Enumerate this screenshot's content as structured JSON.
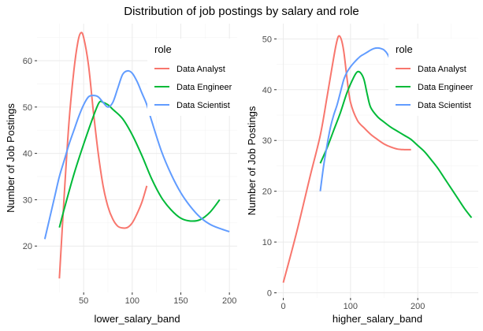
{
  "title": "Distribution of job postings by salary and role",
  "colors": {
    "panel_bg": "#ffffff",
    "grid_major": "#ebebeb",
    "grid_minor": "#f5f5f5",
    "legend_bg": "#ffffff"
  },
  "chart_data": [
    {
      "type": "line",
      "xlabel": "lower_salary_band",
      "ylabel": "Number of Job Postings",
      "xlim": [
        2,
        208
      ],
      "ylim": [
        10,
        68
      ],
      "xticks": [
        50,
        100,
        150,
        200
      ],
      "yticks": [
        20,
        30,
        40,
        50,
        60
      ],
      "legend": {
        "title": "role",
        "position": "top-right",
        "entries": [
          "Data Analyst",
          "Data Engineer",
          "Data Scientist"
        ]
      },
      "series": [
        {
          "name": "Data Analyst",
          "color": "#F8766D",
          "x": [
            25,
            30,
            35,
            40,
            44,
            47,
            50,
            55,
            60,
            65,
            70,
            75,
            80,
            85,
            90,
            95,
            100,
            105,
            110,
            115
          ],
          "y": [
            13,
            31,
            47,
            58,
            64,
            66,
            65,
            59,
            49,
            40,
            33,
            28.5,
            25.8,
            24.3,
            23.9,
            24,
            25,
            27,
            29.5,
            33
          ]
        },
        {
          "name": "Data Engineer",
          "color": "#00BA38",
          "x": [
            25,
            30,
            40,
            50,
            60,
            66,
            70,
            75,
            80,
            90,
            100,
            110,
            120,
            130,
            140,
            150,
            160,
            170,
            180,
            190
          ],
          "y": [
            24,
            28,
            35.5,
            42,
            48,
            51,
            51,
            50.5,
            49.5,
            47.5,
            44,
            39.5,
            34.5,
            30.5,
            27.8,
            26,
            25.4,
            25.7,
            27.3,
            30
          ]
        },
        {
          "name": "Data Scientist",
          "color": "#619CFF",
          "x": [
            10,
            15,
            20,
            25,
            30,
            35,
            40,
            45,
            50,
            55,
            60,
            65,
            70,
            75,
            80,
            85,
            90,
            95,
            100,
            105,
            110,
            115,
            120,
            130,
            140,
            150,
            160,
            170,
            180,
            190,
            200
          ],
          "y": [
            21.5,
            26,
            30.5,
            35,
            38.5,
            42,
            45,
            48,
            50.5,
            52.2,
            52.5,
            52.2,
            51,
            50,
            51,
            54,
            57,
            57.8,
            57.3,
            55.5,
            53,
            50.5,
            47,
            40.5,
            35.5,
            31.5,
            28.5,
            26.2,
            24.7,
            23.8,
            23.1
          ]
        }
      ]
    },
    {
      "type": "line",
      "xlabel": "higher_salary_band",
      "ylabel": "Number of Job Postings",
      "xlim": [
        -10,
        290
      ],
      "ylim": [
        -1,
        53
      ],
      "xticks": [
        0,
        100,
        200
      ],
      "yticks": [
        0,
        10,
        20,
        30,
        40,
        50
      ],
      "legend": {
        "title": "role",
        "position": "top-right",
        "entries": [
          "Data Analyst",
          "Data Engineer",
          "Data Scientist"
        ]
      },
      "series": [
        {
          "name": "Data Analyst",
          "color": "#F8766D",
          "x": [
            0,
            20,
            40,
            55,
            65,
            72,
            78,
            82,
            86,
            90,
            95,
            100,
            110,
            120,
            130,
            140,
            150,
            160,
            170,
            180,
            190
          ],
          "y": [
            2,
            12,
            23,
            31,
            38.5,
            44,
            48.5,
            50.5,
            50,
            47.5,
            42,
            37.5,
            34,
            32.5,
            31.2,
            30.2,
            29.3,
            28.7,
            28.3,
            28.2,
            28.2
          ]
        },
        {
          "name": "Data Engineer",
          "color": "#00BA38",
          "x": [
            55,
            65,
            75,
            85,
            95,
            105,
            110,
            115,
            120,
            125,
            130,
            140,
            150,
            160,
            170,
            180,
            190,
            200,
            210,
            220,
            230,
            240,
            250,
            260,
            270,
            280
          ],
          "y": [
            25.5,
            28.5,
            32,
            35.5,
            39.5,
            42.5,
            43.5,
            43.3,
            42,
            39,
            36.5,
            34.7,
            33.6,
            32.6,
            31.8,
            31,
            30.2,
            29,
            27.8,
            26.2,
            24.5,
            22.5,
            20.5,
            18.5,
            16.5,
            14.8
          ]
        },
        {
          "name": "Data Scientist",
          "color": "#619CFF",
          "x": [
            55,
            60,
            65,
            70,
            75,
            80,
            85,
            90,
            95,
            100,
            105,
            110,
            115,
            120,
            125,
            130,
            135,
            140,
            145,
            150,
            155,
            160
          ],
          "y": [
            20,
            25,
            29,
            32.5,
            35,
            37,
            39.5,
            42,
            43.5,
            44.5,
            45.3,
            46,
            46.6,
            47,
            47.4,
            47.8,
            48.1,
            48.2,
            48.1,
            47.8,
            47,
            45.5
          ]
        }
      ]
    }
  ]
}
